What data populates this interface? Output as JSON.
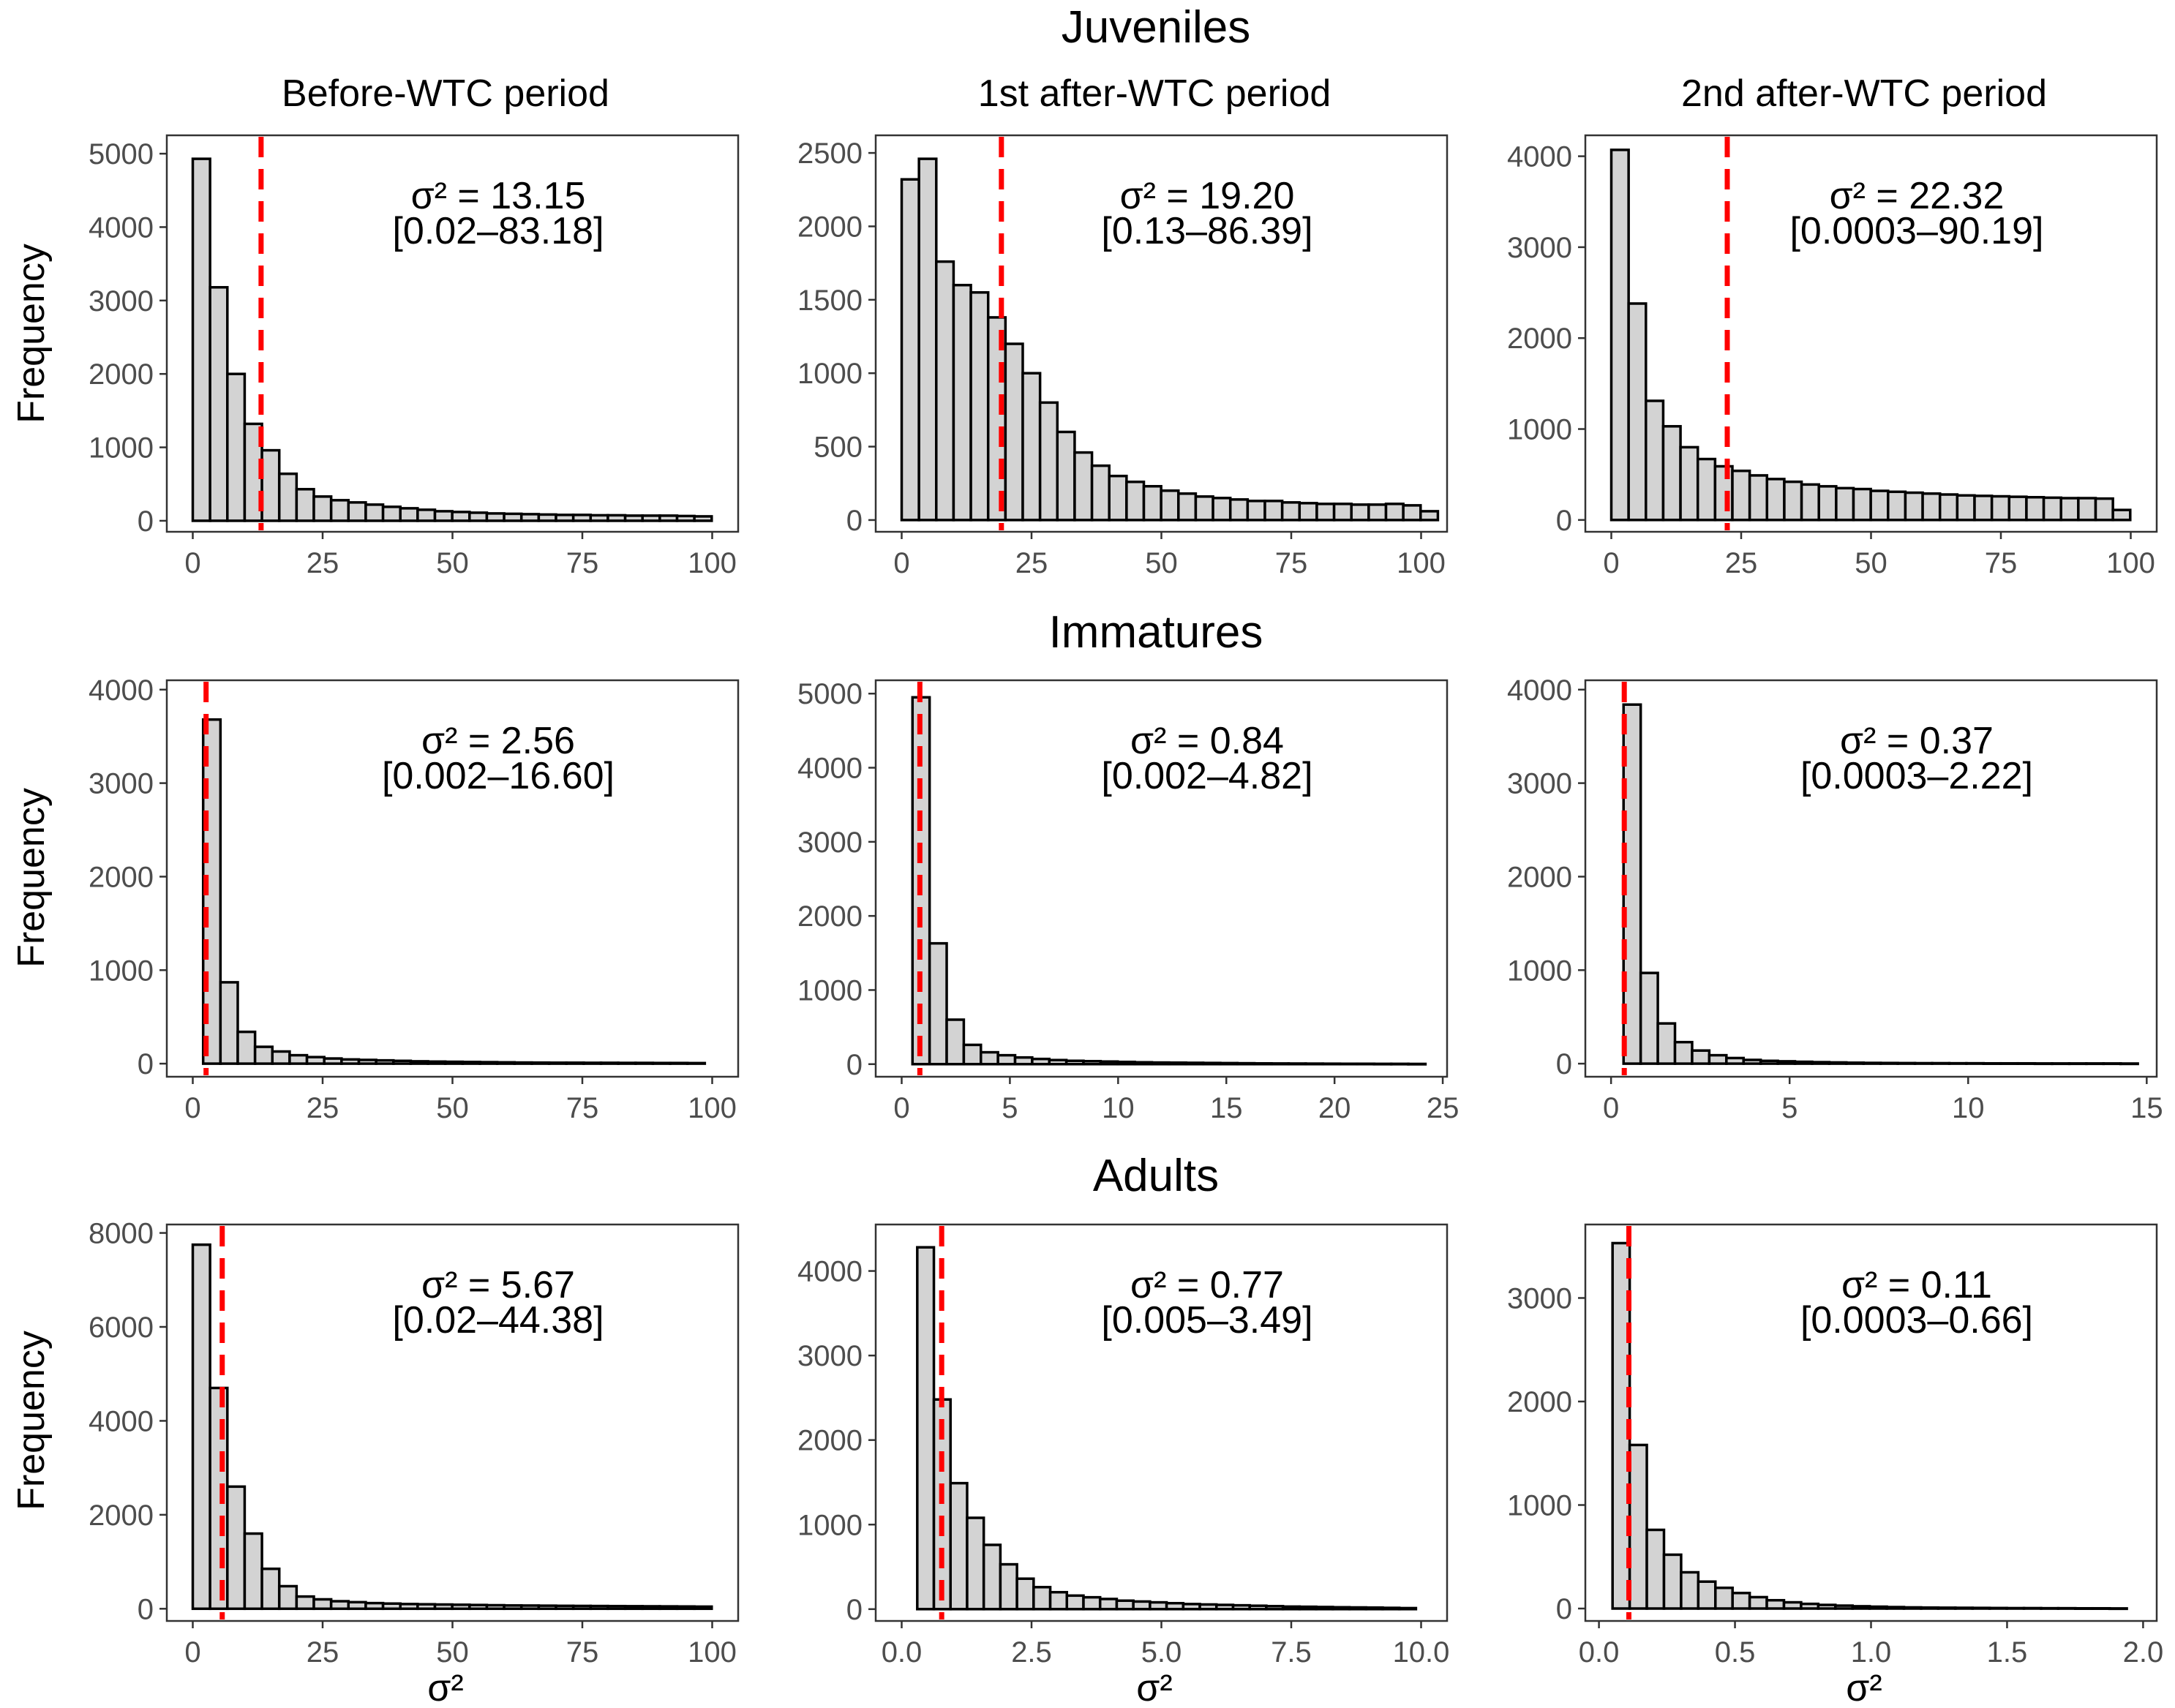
{
  "figure": {
    "row_titles": [
      "Juveniles",
      "Immatures",
      "Adults"
    ],
    "column_titles": [
      "Before-WTC period",
      "1st after-WTC period",
      "2nd after-WTC period"
    ],
    "y_axis_title": "Frequency",
    "x_axis_title": "σ²",
    "colors": {
      "bar_fill": "#d3d3d3",
      "bar_stroke": "#000000",
      "mean_line": "#ff0000",
      "panel_border": "#333333",
      "tick_label": "#4d4d4d"
    }
  },
  "chart_data": [
    {
      "type": "bar",
      "id": "juv-before",
      "row": 0,
      "col": 0,
      "group": "Juveniles",
      "period": "Before-WTC period",
      "xlim": [
        -5,
        105
      ],
      "ylim": [
        -150,
        5250
      ],
      "xticks": [
        0,
        25,
        50,
        75,
        100
      ],
      "yticks": [
        0,
        1000,
        2000,
        3000,
        4000,
        5000
      ],
      "bin_start": 0,
      "bin_width": 3.33,
      "values": [
        4930,
        3180,
        2000,
        1320,
        960,
        640,
        430,
        330,
        280,
        250,
        220,
        190,
        170,
        150,
        130,
        120,
        110,
        100,
        95,
        90,
        85,
        80,
        80,
        75,
        75,
        70,
        70,
        70,
        65,
        60
      ],
      "mean": 13.15,
      "annotation": {
        "line1": "σ² = 13.15",
        "line2": "[0.02–83.18]"
      }
    },
    {
      "type": "bar",
      "id": "juv-1st",
      "row": 0,
      "col": 1,
      "group": "Juveniles",
      "period": "1st after-WTC period",
      "xlim": [
        -5,
        105
      ],
      "ylim": [
        -80,
        2620
      ],
      "xticks": [
        0,
        25,
        50,
        75,
        100
      ],
      "yticks": [
        0,
        500,
        1000,
        1500,
        2000,
        2500
      ],
      "bin_start": 0,
      "bin_width": 3.33,
      "values": [
        2320,
        2460,
        1760,
        1600,
        1550,
        1380,
        1200,
        1000,
        800,
        600,
        460,
        370,
        300,
        260,
        230,
        200,
        180,
        160,
        150,
        140,
        130,
        130,
        120,
        115,
        110,
        110,
        105,
        105,
        110,
        100,
        60
      ],
      "mean": 19.2,
      "annotation": {
        "line1": "σ² = 19.20",
        "line2": "[0.13–86.39]"
      }
    },
    {
      "type": "bar",
      "id": "juv-2nd",
      "row": 0,
      "col": 2,
      "group": "Juveniles",
      "period": "2nd after-WTC period",
      "xlim": [
        -5,
        105
      ],
      "ylim": [
        -130,
        4230
      ],
      "xticks": [
        0,
        25,
        50,
        75,
        100
      ],
      "yticks": [
        0,
        1000,
        2000,
        3000,
        4000
      ],
      "bin_start": 0,
      "bin_width": 3.33,
      "values": [
        4070,
        2380,
        1310,
        1030,
        800,
        670,
        590,
        540,
        490,
        450,
        420,
        390,
        370,
        350,
        340,
        320,
        310,
        300,
        290,
        280,
        270,
        265,
        260,
        255,
        250,
        245,
        240,
        240,
        235,
        110
      ],
      "mean": 22.32,
      "annotation": {
        "line1": "σ² = 22.32",
        "line2": "[0.0003–90.19]"
      }
    },
    {
      "type": "bar",
      "id": "imm-before",
      "row": 1,
      "col": 0,
      "group": "Immatures",
      "period": "Before-WTC period",
      "xlim": [
        -5,
        105
      ],
      "ylim": [
        -140,
        4100
      ],
      "xticks": [
        0,
        25,
        50,
        75,
        100
      ],
      "yticks": [
        0,
        1000,
        2000,
        3000,
        4000
      ],
      "bin_start": 2,
      "bin_width": 3.33,
      "values": [
        3680,
        870,
        340,
        180,
        130,
        90,
        70,
        55,
        45,
        40,
        35,
        30,
        25,
        22,
        20,
        18,
        16,
        14,
        12,
        11,
        10,
        10,
        9,
        9,
        8,
        8,
        7,
        7,
        6
      ],
      "mean": 2.56,
      "annotation": {
        "line1": "σ² = 2.56",
        "line2": "[0.002–16.60]"
      }
    },
    {
      "type": "bar",
      "id": "imm-1st",
      "row": 1,
      "col": 1,
      "group": "Immatures",
      "period": "1st after-WTC period",
      "xlim": [
        -1.2,
        25.2
      ],
      "ylim": [
        -170,
        5180
      ],
      "xticks": [
        0,
        5,
        10,
        15,
        20,
        25
      ],
      "yticks": [
        0,
        1000,
        2000,
        3000,
        4000,
        5000
      ],
      "bin_start": 0.5,
      "bin_width": 0.79,
      "values": [
        4950,
        1630,
        600,
        260,
        160,
        120,
        90,
        70,
        55,
        45,
        40,
        35,
        30,
        25,
        22,
        20,
        18,
        16,
        14,
        12,
        10,
        9,
        8,
        7,
        6,
        5,
        5,
        4,
        4,
        3
      ],
      "mean": 0.84,
      "annotation": {
        "line1": "σ² = 0.84",
        "line2": "[0.002–4.82]"
      }
    },
    {
      "type": "bar",
      "id": "imm-2nd",
      "row": 1,
      "col": 2,
      "group": "Immatures",
      "period": "2nd after-WTC period",
      "xlim": [
        -0.72,
        15.28
      ],
      "ylim": [
        -140,
        4100
      ],
      "xticks": [
        0,
        5,
        10,
        15
      ],
      "yticks": [
        0,
        1000,
        2000,
        3000,
        4000
      ],
      "bin_start": 0.35,
      "bin_width": 0.48,
      "values": [
        3840,
        970,
        430,
        230,
        140,
        90,
        60,
        40,
        30,
        25,
        20,
        16,
        13,
        10,
        8,
        7,
        6,
        5,
        5,
        4,
        4,
        3,
        3,
        3,
        2,
        2,
        2,
        2,
        2,
        1
      ],
      "mean": 0.37,
      "annotation": {
        "line1": "σ² = 0.37",
        "line2": "[0.0003–2.22]"
      }
    },
    {
      "type": "bar",
      "id": "adu-before",
      "row": 2,
      "col": 0,
      "group": "Adults",
      "period": "Before-WTC period",
      "xlim": [
        -5,
        105
      ],
      "ylim": [
        -260,
        8180
      ],
      "xticks": [
        0,
        25,
        50,
        75,
        100
      ],
      "yticks": [
        0,
        2000,
        4000,
        6000,
        8000
      ],
      "bin_start": 0,
      "bin_width": 3.33,
      "values": [
        7750,
        4700,
        2600,
        1600,
        850,
        480,
        260,
        200,
        160,
        140,
        120,
        110,
        100,
        95,
        90,
        85,
        80,
        75,
        70,
        68,
        65,
        62,
        60,
        58,
        56,
        54,
        52,
        50,
        48,
        45
      ],
      "mean": 5.67,
      "annotation": {
        "line1": "σ² = 5.67",
        "line2": "[0.02–44.38]"
      }
    },
    {
      "type": "bar",
      "id": "adu-1st",
      "row": 2,
      "col": 1,
      "group": "Adults",
      "period": "1st after-WTC period",
      "xlim": [
        -0.5,
        10.5
      ],
      "ylim": [
        -140,
        4550
      ],
      "xticks": [
        0,
        2.5,
        5,
        7.5,
        10
      ],
      "xtick_labels": [
        "0.0",
        "2.5",
        "5.0",
        "7.5",
        "10.0"
      ],
      "yticks": [
        0,
        1000,
        2000,
        3000,
        4000
      ],
      "bin_start": 0.3,
      "bin_width": 0.32,
      "values": [
        4280,
        2480,
        1490,
        1080,
        760,
        530,
        360,
        260,
        200,
        160,
        140,
        120,
        100,
        90,
        80,
        70,
        60,
        55,
        50,
        45,
        40,
        35,
        30,
        28,
        25,
        22,
        20,
        18,
        15,
        12
      ],
      "mean": 0.77,
      "annotation": {
        "line1": "σ² = 0.77",
        "line2": "[0.005–3.49]"
      }
    },
    {
      "type": "bar",
      "id": "adu-2nd",
      "row": 2,
      "col": 2,
      "group": "Adults",
      "period": "2nd after-WTC period",
      "xlim": [
        -0.05,
        2.05
      ],
      "ylim": [
        -120,
        3710
      ],
      "xticks": [
        0,
        0.5,
        1,
        1.5,
        2
      ],
      "xtick_labels": [
        "0.0",
        "0.5",
        "1.0",
        "1.5",
        "2.0"
      ],
      "yticks": [
        0,
        1000,
        2000,
        3000
      ],
      "bin_start": 0.05,
      "bin_width": 0.063,
      "values": [
        3530,
        1580,
        760,
        520,
        350,
        260,
        200,
        150,
        110,
        80,
        60,
        45,
        35,
        28,
        22,
        18,
        14,
        11,
        9,
        8,
        7,
        6,
        5,
        4,
        4,
        3,
        3,
        2,
        2,
        1
      ],
      "mean": 0.11,
      "annotation": {
        "line1": "σ² = 0.11",
        "line2": "[0.0003–0.66]"
      }
    }
  ]
}
